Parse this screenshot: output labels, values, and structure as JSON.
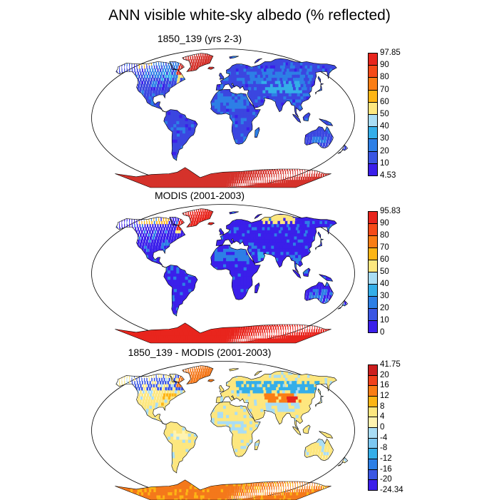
{
  "figure": {
    "title": "ANN visible white-sky albedo (% reflected)"
  },
  "panels": [
    {
      "id": "model",
      "title": "1850_139 (yrs 2-3)",
      "colorbar": {
        "labels": [
          "97.85",
          "90",
          "80",
          "70",
          "60",
          "50",
          "40",
          "30",
          "20",
          "10",
          "4.53"
        ],
        "colors": [
          "#e8251d",
          "#f54a18",
          "#fa7d14",
          "#fdb515",
          "#fde77f",
          "#a9ddf5",
          "#34aee9",
          "#2d7fe6",
          "#3a56e3",
          "#3b1fea"
        ]
      },
      "color_scale": "land albedo mostly 10-30% (blue); Greenland and Antarctica 80-97% (red)"
    },
    {
      "id": "obs",
      "title": "MODIS (2001-2003)",
      "colorbar": {
        "labels": [
          "95.83",
          "90",
          "80",
          "70",
          "60",
          "50",
          "40",
          "30",
          "20",
          "10",
          "0"
        ],
        "colors": [
          "#e8251d",
          "#f54a18",
          "#fa7d14",
          "#fdb515",
          "#fde77f",
          "#a9ddf5",
          "#34aee9",
          "#2d7fe6",
          "#3a56e3",
          "#3b1fea"
        ]
      },
      "color_scale": "land albedo mostly 0-20% (blue); Greenland and Antarctica 90-96% (red)"
    },
    {
      "id": "diff",
      "title": "1850_139 - MODIS (2001-2003)",
      "colorbar": {
        "labels": [
          "41.75",
          "20",
          "16",
          "12",
          "8",
          "4",
          "0",
          "-4",
          "-8",
          "-12",
          "-16",
          "-20",
          "-24.34"
        ],
        "colors": [
          "#cc1e1e",
          "#f1411b",
          "#fa7d14",
          "#fdb515",
          "#fde77f",
          "#fff3b0",
          "#a9ddf5",
          "#7cc8f2",
          "#34aee9",
          "#2d7fe6",
          "#3a56e3",
          "#3b1fea"
        ]
      },
      "color_scale": "mostly 0-4 (pale yellow) over land; 8-20 (orange/red) over northern high latitudes and Antarctica"
    }
  ]
}
